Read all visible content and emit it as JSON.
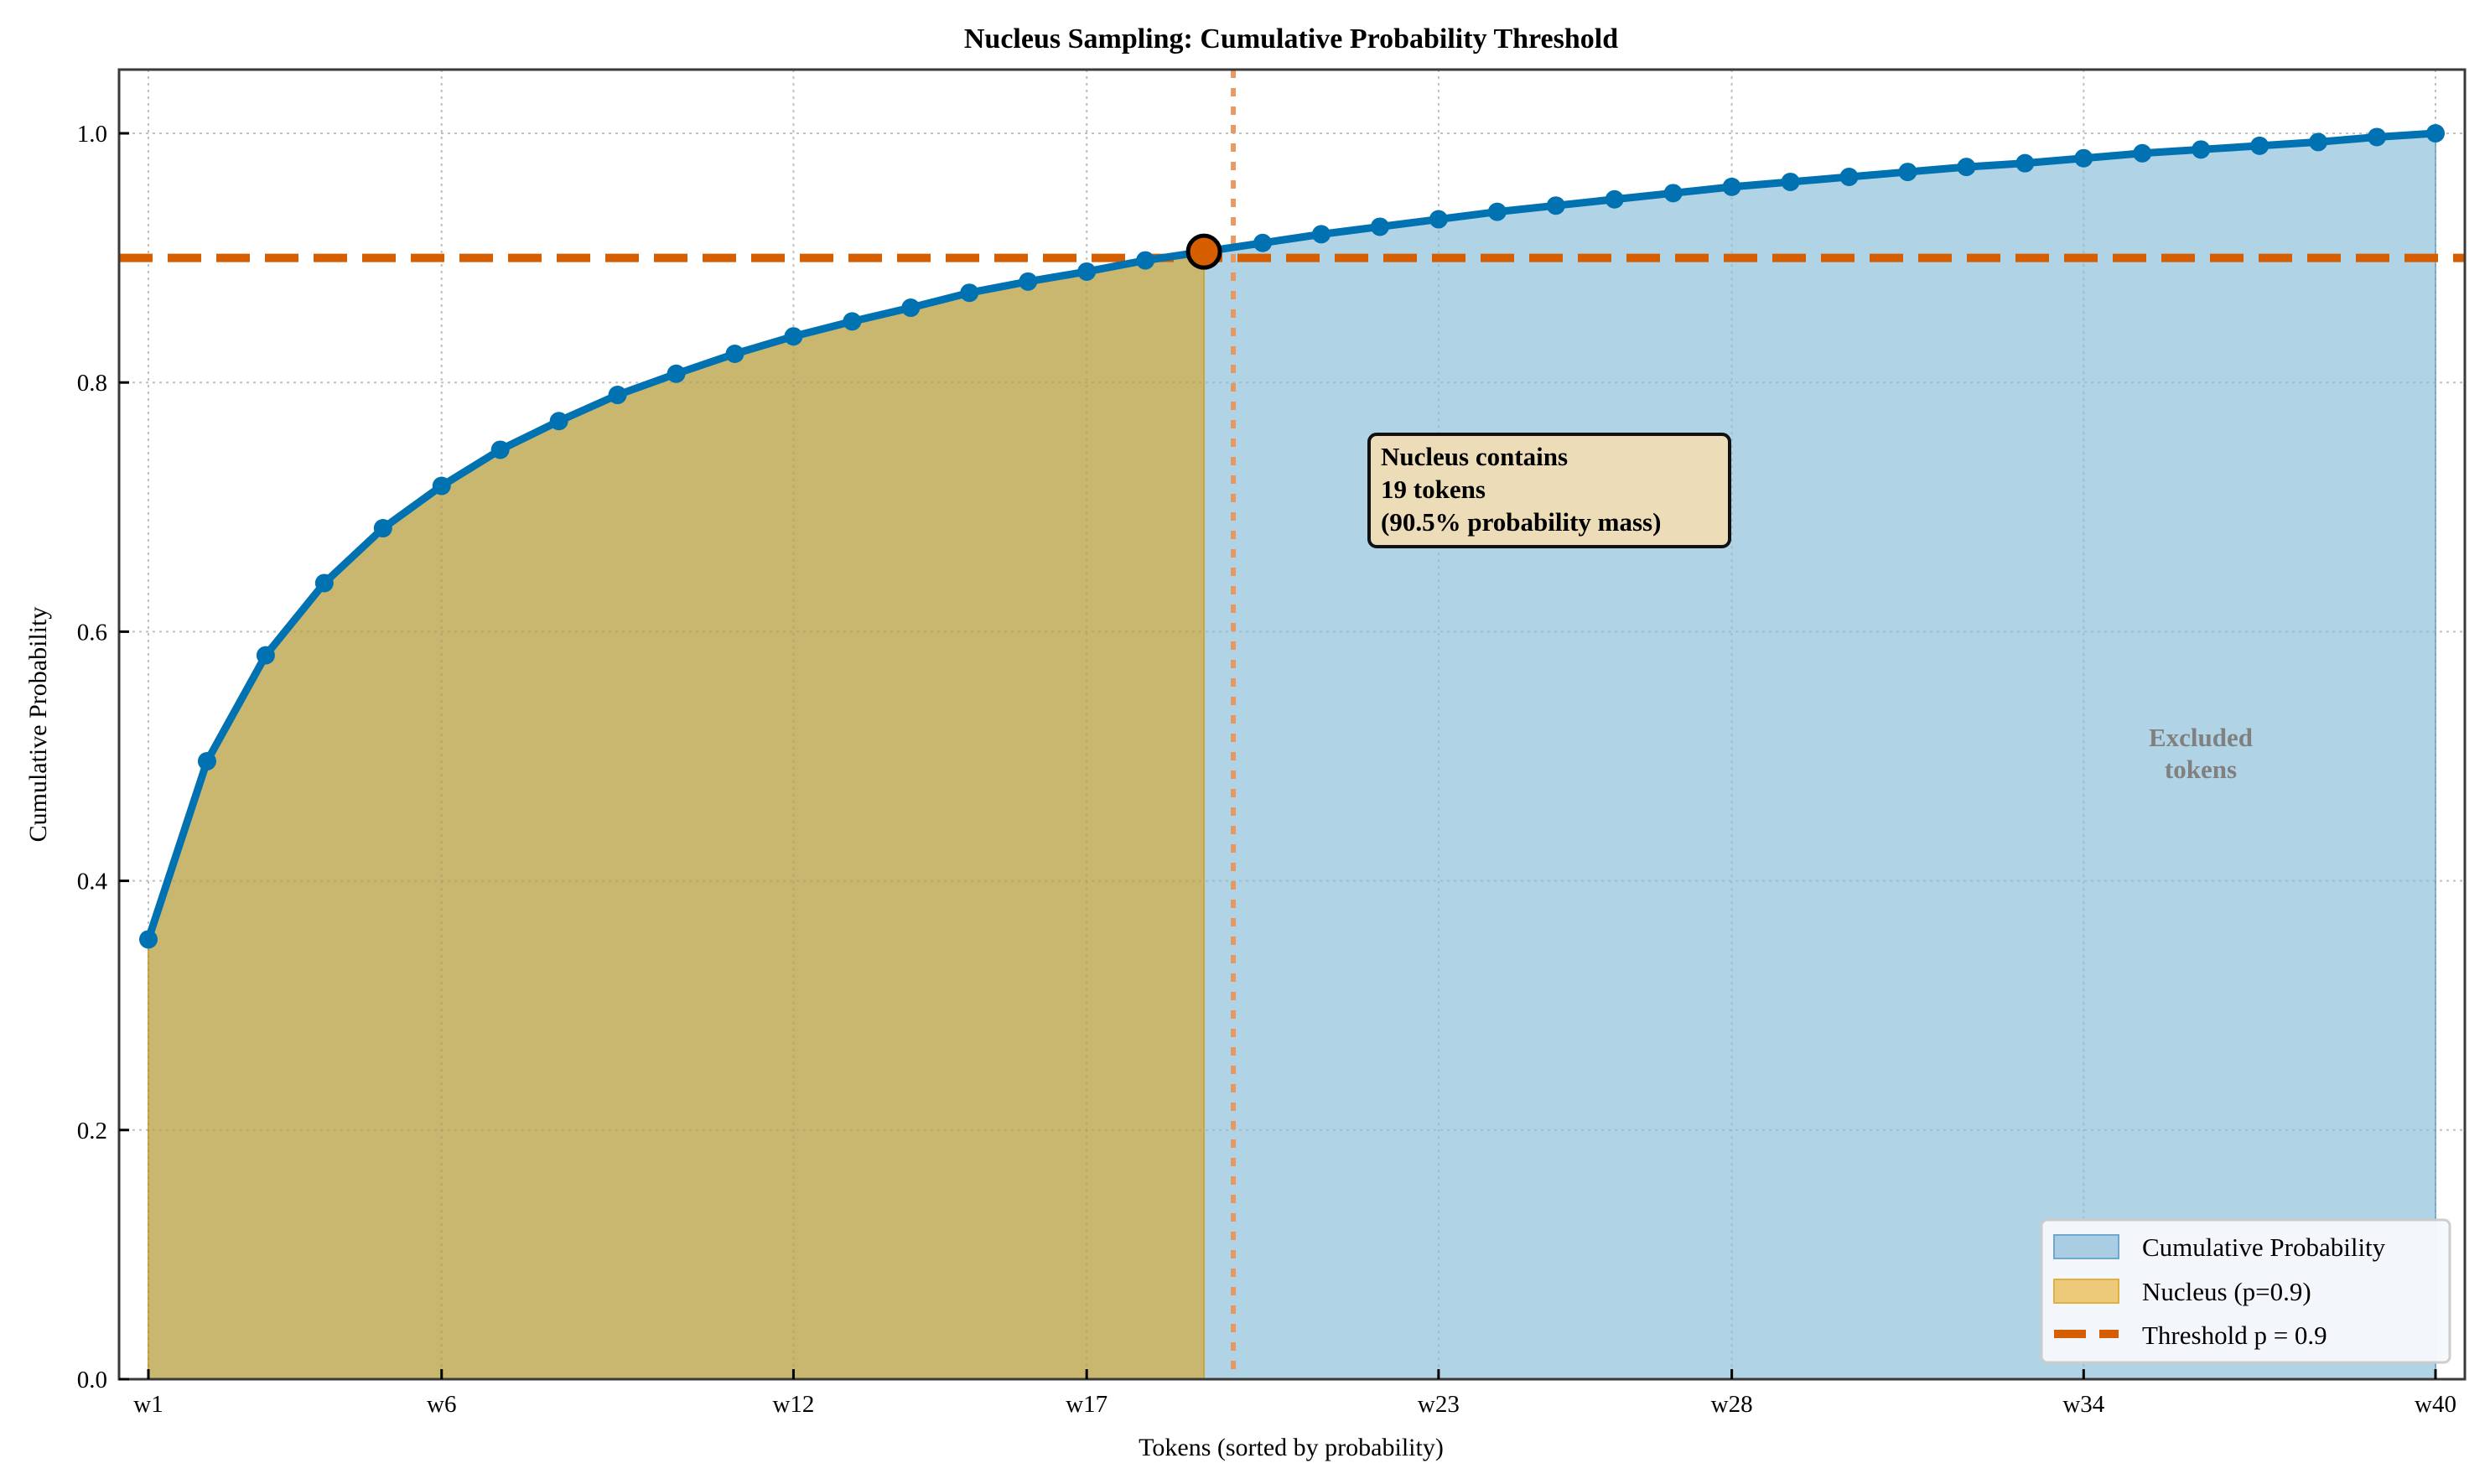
{
  "chart_data": {
    "type": "line",
    "title": "Nucleus Sampling: Cumulative Probability Threshold",
    "xlabel": "Tokens (sorted by probability)",
    "ylabel": "Cumulative Probability",
    "categories": [
      "w1",
      "w2",
      "w3",
      "w4",
      "w5",
      "w6",
      "w7",
      "w8",
      "w9",
      "w10",
      "w11",
      "w12",
      "w13",
      "w14",
      "w15",
      "w16",
      "w17",
      "w18",
      "w19",
      "w20",
      "w21",
      "w22",
      "w23",
      "w24",
      "w25",
      "w26",
      "w27",
      "w28",
      "w29",
      "w30",
      "w31",
      "w32",
      "w33",
      "w34",
      "w35",
      "w36",
      "w37",
      "w38",
      "w39",
      "w40"
    ],
    "series": [
      {
        "name": "Cumulative Probability",
        "color": "#0072B2",
        "values": [
          0.353,
          0.496,
          0.581,
          0.639,
          0.683,
          0.717,
          0.746,
          0.769,
          0.79,
          0.807,
          0.823,
          0.837,
          0.849,
          0.86,
          0.872,
          0.881,
          0.889,
          0.898,
          0.905,
          0.912,
          0.919,
          0.925,
          0.931,
          0.937,
          0.942,
          0.947,
          0.952,
          0.957,
          0.961,
          0.965,
          0.969,
          0.973,
          0.976,
          0.98,
          0.984,
          0.987,
          0.99,
          0.993,
          0.997,
          1.0
        ]
      }
    ],
    "xticks": [
      "w1",
      "w6",
      "w12",
      "w17",
      "w23",
      "w28",
      "w34",
      "w40"
    ],
    "xtick_indices": [
      1,
      6,
      12,
      17,
      23,
      28,
      34,
      40
    ],
    "yticks": [
      "0.0",
      "0.2",
      "0.4",
      "0.6",
      "0.8",
      "1.0"
    ],
    "ylim": [
      0,
      1.05
    ],
    "grid": true,
    "threshold": {
      "value": 0.9,
      "label": "Threshold p = 0.9",
      "color": "#D55E00"
    },
    "nucleus": {
      "count": 19,
      "mass": 0.905,
      "label": "Nucleus (p=0.9)",
      "fill": "#C9B770",
      "legend_fill": "#EDC97A"
    },
    "cutoff_marker": {
      "token": "w19",
      "value": 0.905,
      "color": "#D55E00"
    },
    "cutoff_line_x": 19.5,
    "excluded_fill": "#B0D4E6",
    "annotations": [
      {
        "lines": [
          "Nucleus contains",
          "19 tokens",
          "(90.5% probability mass)"
        ],
        "box_fill": "#EDDCB8"
      },
      {
        "lines": [
          "Excluded",
          "tokens"
        ],
        "color": "#808080"
      }
    ],
    "legend": {
      "position": "lower right",
      "entries": [
        {
          "label": "Cumulative Probability",
          "kind": "patch",
          "color": "#AACDE3",
          "edge": "#6EA8CF"
        },
        {
          "label": "Nucleus (p=0.9)",
          "kind": "patch",
          "color": "#EDC97A",
          "edge": "#E0B040"
        },
        {
          "label": "Threshold p = 0.9",
          "kind": "dashed-line",
          "color": "#D55E00"
        }
      ]
    }
  }
}
